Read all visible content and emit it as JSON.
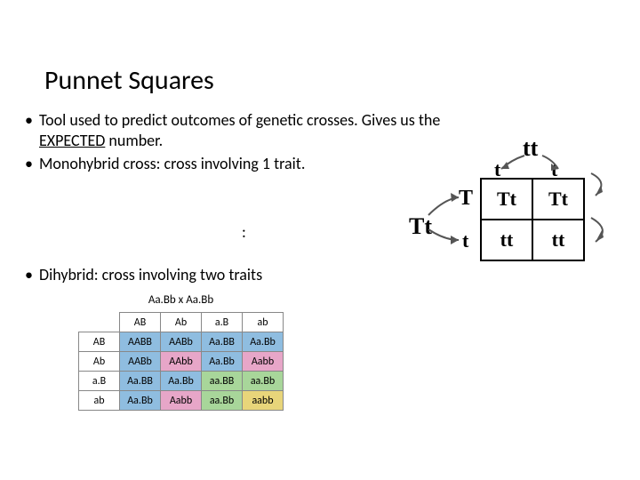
{
  "title": "Punnet Squares",
  "bullets": {
    "b1a": "Tool used to predict outcomes of genetic crosses.  Gives us the ",
    "b1_expected": "EXPECTED",
    "b1b": " number.",
    "b2": "Monohybrid cross: cross involving 1 trait.",
    "b3": "Dihybrid: cross involving two traits"
  },
  "lonely_colon": ":",
  "monohybrid": {
    "parent_top": "tt",
    "parent_left": "Tt",
    "col_alleles": [
      "t",
      "t"
    ],
    "row_alleles": [
      "T",
      "t"
    ],
    "cells": [
      [
        "Tt",
        "Tt"
      ],
      [
        "tt",
        "tt"
      ]
    ]
  },
  "dihybrid": {
    "cross_label": "Aa.Bb   x   Aa.Bb",
    "col_headers": [
      "AB",
      "Ab",
      "a.B",
      "ab"
    ],
    "row_headers": [
      "AB",
      "Ab",
      "a.B",
      "ab"
    ],
    "rows": [
      [
        "AABB",
        "AABb",
        "Aa.BB",
        "Aa.Bb"
      ],
      [
        "AABb",
        "AAbb",
        "Aa.Bb",
        "Aabb"
      ],
      [
        "Aa.BB",
        "Aa.Bb",
        "aa.BB",
        "aa.Bb"
      ],
      [
        "Aa.Bb",
        "Aabb",
        "aa.Bb",
        "aabb"
      ]
    ],
    "cell_colors": [
      [
        "#8fbde0",
        "#8fbde0",
        "#8fbde0",
        "#8fbde0"
      ],
      [
        "#8fbde0",
        "#e7a6c8",
        "#8fbde0",
        "#e7a6c8"
      ],
      [
        "#8fbde0",
        "#8fbde0",
        "#a8d69a",
        "#a8d69a"
      ],
      [
        "#8fbde0",
        "#e7a6c8",
        "#a8d69a",
        "#e8d57a"
      ]
    ]
  }
}
